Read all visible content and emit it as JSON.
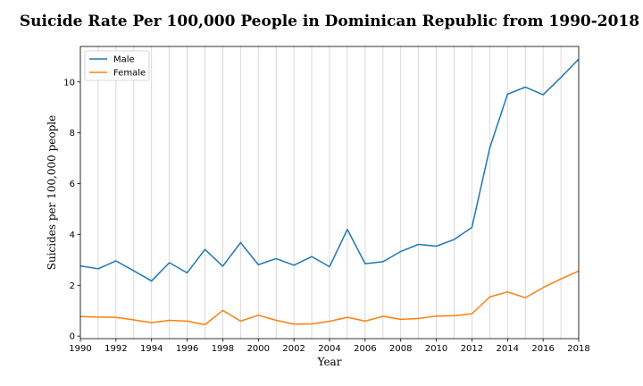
{
  "chart_data": {
    "type": "line",
    "title": "Suicide Rate Per 100,000 People in Dominican Republic from 1990-2018",
    "xlabel": "Year",
    "ylabel": "Suicides per 100,000 people",
    "xlim": [
      1990,
      2018
    ],
    "ylim": [
      -0.1,
      11.4
    ],
    "x_ticks": [
      1990,
      1992,
      1994,
      1996,
      1998,
      2000,
      2002,
      2004,
      2006,
      2008,
      2010,
      2012,
      2014,
      2016,
      2018
    ],
    "y_ticks": [
      0,
      2,
      4,
      6,
      8,
      10
    ],
    "grid": "vertical gridlines at every year",
    "legend_position": "upper-left",
    "x": [
      1990,
      1991,
      1992,
      1993,
      1994,
      1995,
      1996,
      1997,
      1998,
      1999,
      2000,
      2001,
      2002,
      2003,
      2004,
      2005,
      2006,
      2007,
      2008,
      2009,
      2010,
      2011,
      2012,
      2013,
      2014,
      2015,
      2016,
      2017,
      2018
    ],
    "series": [
      {
        "name": "Male",
        "color": "#1f77b4",
        "values": [
          2.76,
          2.65,
          2.96,
          2.57,
          2.17,
          2.89,
          2.49,
          3.41,
          2.75,
          3.68,
          2.81,
          3.05,
          2.79,
          3.13,
          2.73,
          4.2,
          2.85,
          2.93,
          3.33,
          3.61,
          3.54,
          3.8,
          4.28,
          7.4,
          9.52,
          9.8,
          9.5,
          10.18,
          10.9
        ]
      },
      {
        "name": "Female",
        "color": "#ff7f0e",
        "values": [
          0.77,
          0.75,
          0.74,
          0.64,
          0.53,
          0.62,
          0.59,
          0.45,
          1.01,
          0.59,
          0.82,
          0.62,
          0.47,
          0.48,
          0.58,
          0.74,
          0.59,
          0.78,
          0.66,
          0.69,
          0.79,
          0.8,
          0.88,
          1.54,
          1.74,
          1.51,
          1.91,
          2.25,
          2.56
        ]
      }
    ]
  }
}
